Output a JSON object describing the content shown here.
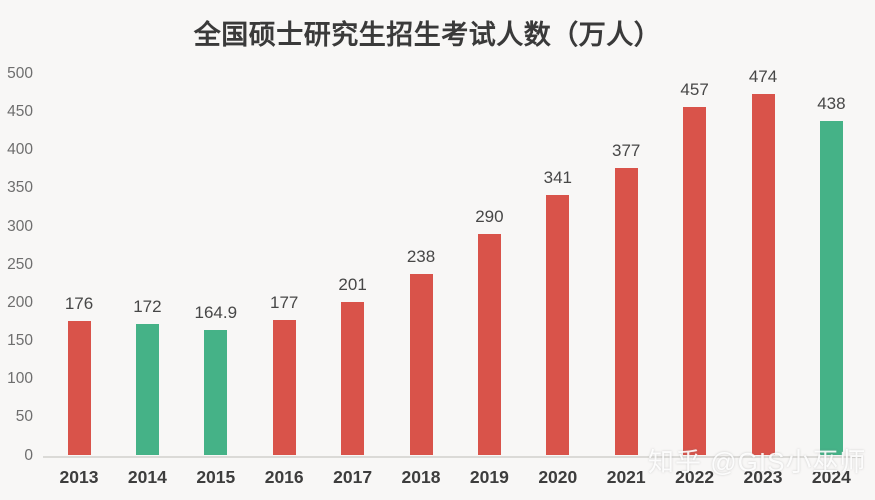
{
  "chart_data": {
    "type": "bar",
    "title": "全国硕士研究生招生考试人数（万人）",
    "categories": [
      "2013",
      "2014",
      "2015",
      "2016",
      "2017",
      "2018",
      "2019",
      "2020",
      "2021",
      "2022",
      "2023",
      "2024"
    ],
    "values": [
      176,
      172,
      164.9,
      177,
      201,
      238,
      290,
      341,
      377,
      457,
      474,
      438
    ],
    "value_labels": [
      "176",
      "172",
      "164.9",
      "177",
      "201",
      "238",
      "290",
      "341",
      "377",
      "457",
      "474",
      "438"
    ],
    "bar_colors": [
      "#d9534a",
      "#45b287",
      "#45b287",
      "#d9534a",
      "#d9534a",
      "#d9534a",
      "#d9534a",
      "#d9534a",
      "#d9534a",
      "#d9534a",
      "#d9534a",
      "#45b287"
    ],
    "ylabel": "",
    "xlabel": "",
    "ylim": [
      0,
      500
    ],
    "ytick_values": [
      0,
      50,
      100,
      150,
      200,
      250,
      300,
      350,
      400,
      450,
      500
    ],
    "grid": false,
    "legend": null
  },
  "colors": {
    "red_bar": "#d9534a",
    "green_bar": "#45b287",
    "background": "#f8f7f6",
    "axis_line": "#dbdad7"
  },
  "watermark": "知乎 @GIS小巫师"
}
